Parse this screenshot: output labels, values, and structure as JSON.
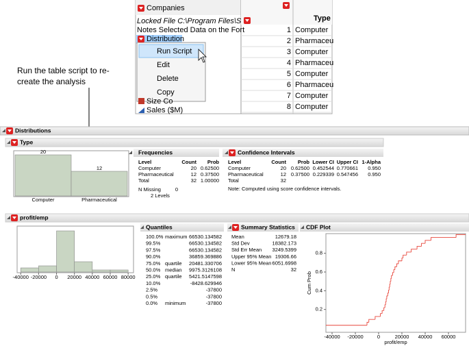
{
  "data_table": {
    "title": "Companies",
    "locked_file": "Locked File  C:\\Program Files\\S",
    "notes": "Notes  Selected Data on the Fort",
    "script": "Distribution",
    "columns_partial": [
      "Size Co",
      "Sales ($M)"
    ],
    "column_header": "Type",
    "rows": [
      [
        "1",
        "Computer"
      ],
      [
        "2",
        "Pharmaceu"
      ],
      [
        "3",
        "Computer"
      ],
      [
        "4",
        "Pharmaceu"
      ],
      [
        "5",
        "Computer"
      ],
      [
        "6",
        "Pharmaceu"
      ],
      [
        "7",
        "Computer"
      ],
      [
        "8",
        "Computer"
      ]
    ]
  },
  "context_menu": {
    "items": [
      "Run Script",
      "Edit",
      "Delete",
      "Copy"
    ]
  },
  "callout": [
    "Run the table script to re-",
    "create the analysis"
  ],
  "report": {
    "title": "Distributions",
    "type_section": {
      "title": "Type",
      "histogram": {
        "type": "bar",
        "categories": [
          "Computer",
          "Pharmaceutical"
        ],
        "values": [
          20,
          12
        ],
        "color": "#c9d6c3"
      },
      "frequencies": {
        "title": "Frequencies",
        "header": [
          "Level",
          "Count",
          "Prob"
        ],
        "rows": [
          [
            "Computer",
            "20",
            "0.62500"
          ],
          [
            "Pharmaceutical",
            "12",
            "0.37500"
          ],
          [
            "Total",
            "32",
            "1.00000"
          ]
        ],
        "missing": [
          "N Missing",
          "0"
        ],
        "levels": "2 Levels"
      },
      "confidence_intervals": {
        "title": "Confidence Intervals",
        "header": [
          "Level",
          "Count",
          "Prob",
          "Lower CI",
          "Upper CI",
          "1-Alpha"
        ],
        "rows": [
          [
            "Computer",
            "20",
            "0.62500",
            "0.452544",
            "0.770661",
            "0.950"
          ],
          [
            "Pharmaceutical",
            "12",
            "0.37500",
            "0.229339",
            "0.547456",
            "0.950"
          ],
          [
            "Total",
            "32"
          ]
        ],
        "note": "Note: Computed using score confidence intervals."
      }
    },
    "profit_section": {
      "title": "profit/emp",
      "histogram": {
        "type": "histogram",
        "bins": [
          -40000,
          -20000,
          0,
          20000,
          40000,
          60000,
          80000
        ],
        "values": [
          2,
          3,
          20,
          5,
          1,
          1
        ],
        "color": "#c9d6c3",
        "xlim": [
          -44000,
          86000
        ],
        "xticks": [
          -40000,
          -20000,
          0,
          20000,
          40000,
          60000,
          80000
        ]
      },
      "quantiles": {
        "title": "Quantiles",
        "rows": [
          [
            "100.0%",
            "maximum",
            "66530.134582"
          ],
          [
            "99.5%",
            "",
            "66530.134582"
          ],
          [
            "97.5%",
            "",
            "66530.134582"
          ],
          [
            "90.0%",
            "",
            "36859.369886"
          ],
          [
            "75.0%",
            "quartile",
            "20481.330706"
          ],
          [
            "50.0%",
            "median",
            "9975.3126108"
          ],
          [
            "25.0%",
            "quartile",
            "5421.5147598"
          ],
          [
            "10.0%",
            "",
            "-8428.629946"
          ],
          [
            "2.5%",
            "",
            "-37800"
          ],
          [
            "0.5%",
            "",
            "-37800"
          ],
          [
            "0.0%",
            "minimum",
            "-37800"
          ]
        ]
      },
      "summary_statistics": {
        "title": "Summary Statistics",
        "rows": [
          [
            "Mean",
            "12679.18"
          ],
          [
            "Std Dev",
            "18382.173"
          ],
          [
            "Std Err Mean",
            "3249.5399"
          ],
          [
            "Upper 95% Mean",
            "19306.66"
          ],
          [
            "Lower 95% Mean",
            "6051.6998"
          ],
          [
            "N",
            "32"
          ]
        ]
      },
      "cdf_plot": {
        "type": "step",
        "title": "CDF Plot",
        "xlabel": "profit/emp",
        "ylabel": "Cum Prob",
        "color": "#e8473c",
        "x": [
          -37800,
          -10000,
          -8400,
          -3000,
          1500,
          3000,
          4500,
          5400,
          6000,
          6500,
          7000,
          7800,
          8500,
          9000,
          9500,
          9975,
          10500,
          11000,
          12000,
          13000,
          14000,
          15500,
          17000,
          20000,
          21000,
          24000,
          28000,
          33000,
          36800,
          40000,
          45000,
          66530
        ],
        "y": [
          0.031,
          0.063,
          0.094,
          0.125,
          0.156,
          0.188,
          0.219,
          0.25,
          0.281,
          0.313,
          0.344,
          0.375,
          0.406,
          0.438,
          0.469,
          0.5,
          0.531,
          0.563,
          0.594,
          0.625,
          0.656,
          0.688,
          0.719,
          0.75,
          0.781,
          0.813,
          0.844,
          0.875,
          0.906,
          0.938,
          0.969,
          1
        ],
        "xlim": [
          -45300,
          74700
        ],
        "ylim": [
          -0.044,
          1.01
        ],
        "xticks": [
          -40000,
          -20000,
          0,
          20000,
          40000,
          60000
        ],
        "yticks": [
          0.2,
          0.4,
          0.6,
          0.8
        ]
      }
    }
  }
}
